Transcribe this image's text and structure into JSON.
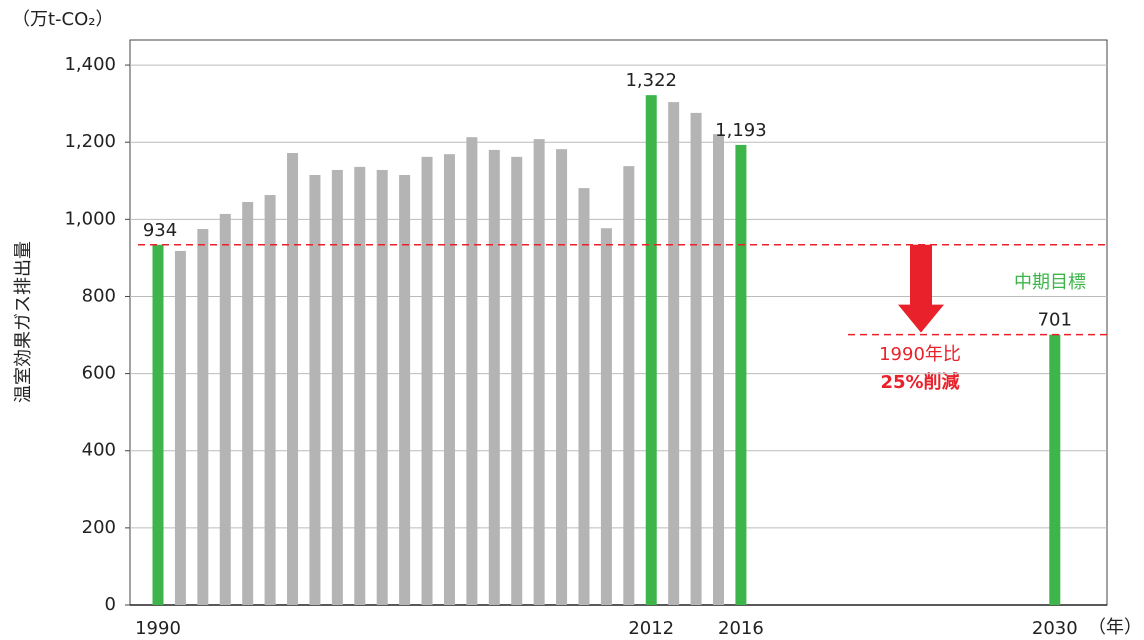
{
  "chart_data": {
    "type": "bar",
    "unit_label": "（万t-CO₂）",
    "y_label": "温室効果ガス排出量",
    "x_label": "（年）",
    "categories": [
      "1990",
      null,
      null,
      null,
      null,
      null,
      null,
      null,
      null,
      null,
      null,
      null,
      null,
      null,
      null,
      null,
      null,
      null,
      null,
      null,
      null,
      null,
      "2012",
      null,
      null,
      null,
      "2016",
      null,
      null,
      null,
      null,
      null,
      null,
      null,
      null,
      null,
      null,
      null,
      null,
      null,
      "2030"
    ],
    "values": [
      934,
      918,
      975,
      1014,
      1045,
      1063,
      1172,
      1115,
      1128,
      1136,
      1128,
      1115,
      1162,
      1169,
      1213,
      1180,
      1162,
      1208,
      1182,
      1081,
      977,
      1138,
      1322,
      1304,
      1276,
      1221,
      1193,
      null,
      null,
      null,
      null,
      null,
      null,
      null,
      null,
      null,
      null,
      null,
      null,
      null,
      701
    ],
    "value_labels": [
      "934",
      null,
      null,
      null,
      null,
      null,
      null,
      null,
      null,
      null,
      null,
      null,
      null,
      null,
      null,
      null,
      null,
      null,
      null,
      null,
      null,
      null,
      "1,322",
      null,
      null,
      null,
      "1,193",
      null,
      null,
      null,
      null,
      null,
      null,
      null,
      null,
      null,
      null,
      null,
      null,
      null,
      "701"
    ],
    "colors": [
      "#3db54a",
      "#b4b4b4",
      "#b4b4b4",
      "#b4b4b4",
      "#b4b4b4",
      "#b4b4b4",
      "#b4b4b4",
      "#b4b4b4",
      "#b4b4b4",
      "#b4b4b4",
      "#b4b4b4",
      "#b4b4b4",
      "#b4b4b4",
      "#b4b4b4",
      "#b4b4b4",
      "#b4b4b4",
      "#b4b4b4",
      "#b4b4b4",
      "#b4b4b4",
      "#b4b4b4",
      "#b4b4b4",
      "#b4b4b4",
      "#3db54a",
      "#b4b4b4",
      "#b4b4b4",
      "#b4b4b4",
      "#3db54a",
      null,
      null,
      null,
      null,
      null,
      null,
      null,
      null,
      null,
      null,
      null,
      null,
      null,
      "#3db54a"
    ],
    "ylim": [
      0,
      1465
    ],
    "yticks": [
      0,
      200,
      400,
      600,
      800,
      {
        "value": 1000,
        "label": "1,000"
      },
      {
        "value": 1200,
        "label": "1,200"
      },
      {
        "value": 1400,
        "label": "1,400"
      }
    ],
    "grid": true,
    "reference_color": "#e8212a",
    "target_label": "中期目標",
    "reduction_label": "1990年比",
    "reduction_value_label": "25%削減"
  }
}
